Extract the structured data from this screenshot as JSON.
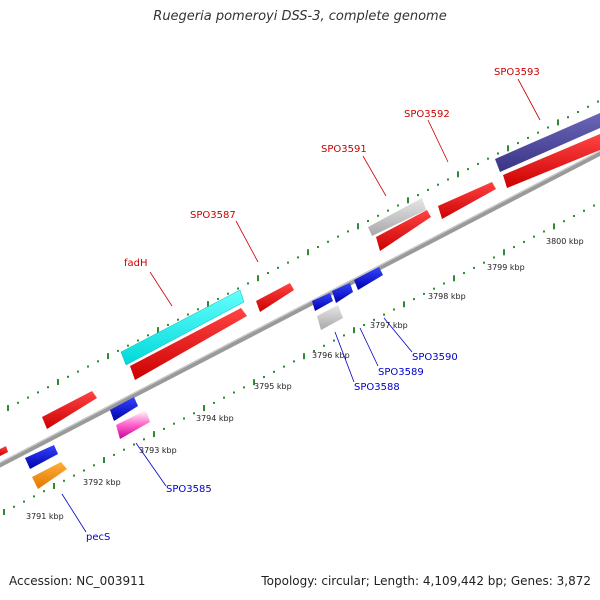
{
  "title": "Ruegeria pomeroyi DSS-3, complete genome",
  "footer": {
    "accession": "Accession: NC_003911",
    "summary": "Topology: circular; Length: 4,109,442 bp; Genes: 3,872"
  },
  "colors": {
    "backbone": "#888888",
    "tick_green": "#2e8b2e",
    "label_red": "#cc0000",
    "label_blue": "#0000cc"
  },
  "kbp_labels": [
    "3791 kbp",
    "3792 kbp",
    "3793 kbp",
    "3794 kbp",
    "3795 kbp",
    "3796 kbp",
    "3797 kbp",
    "3798 kbp",
    "3799 kbp",
    "3800 kbp"
  ],
  "top_labels": [
    "fadH",
    "SPO3587",
    "SPO3591",
    "SPO3592",
    "SPO3593"
  ],
  "bottom_labels": [
    "pecS",
    "SPO3585",
    "SPO3588",
    "SPO3589",
    "SPO3590"
  ]
}
